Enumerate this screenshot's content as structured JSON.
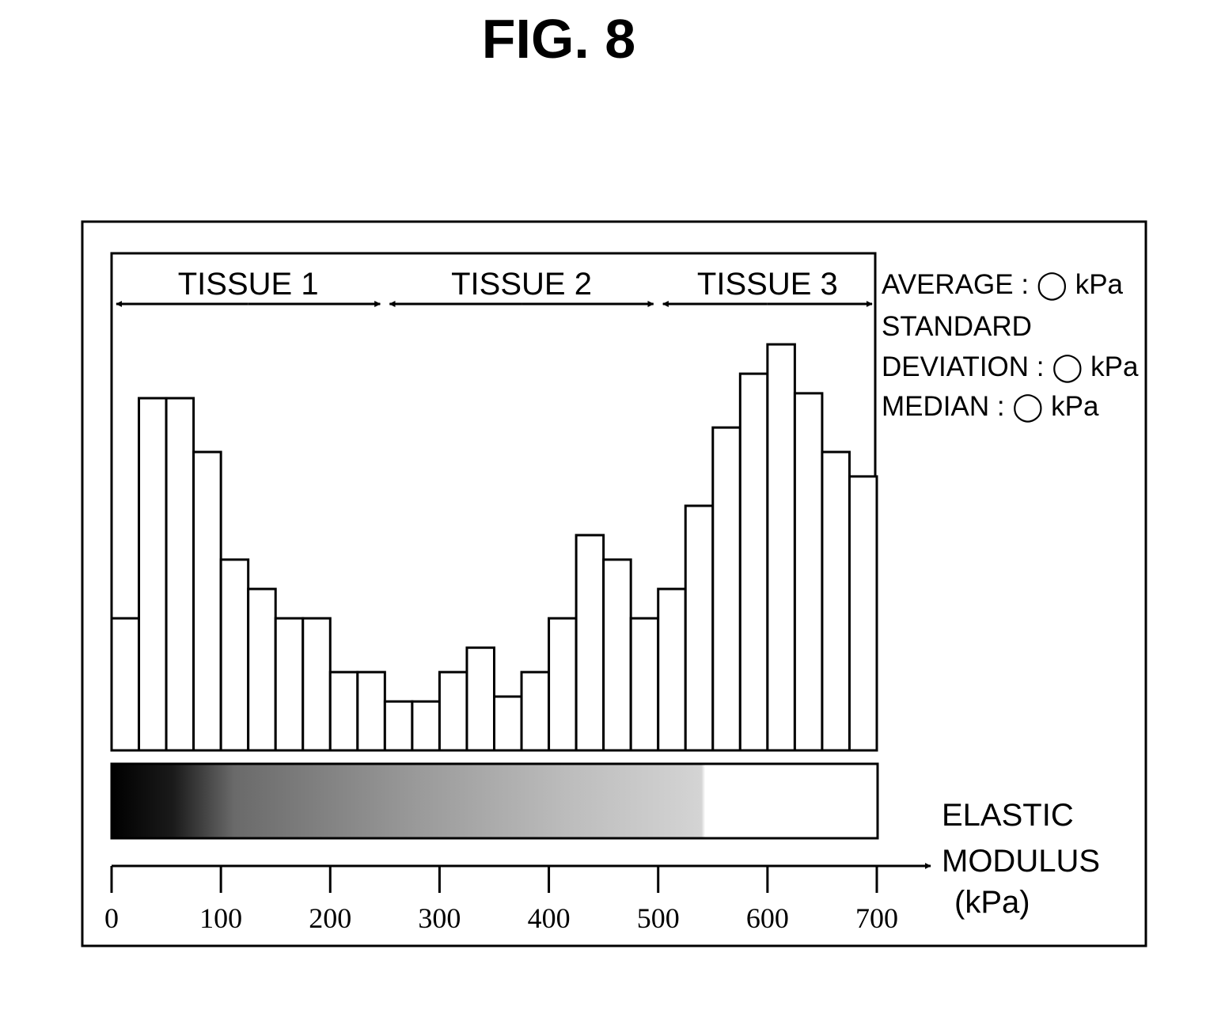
{
  "figure": {
    "title": "FIG. 8"
  },
  "stats": {
    "average": "AVERAGE : ◯ kPa",
    "std_line1": "STANDARD",
    "std_line2": "DEVIATION : ◯ kPa",
    "median": "MEDIAN : ◯ kPa"
  },
  "x_axis": {
    "label_line1": "ELASTIC",
    "label_line2": "MODULUS",
    "label_line3": "(kPa)"
  },
  "colorbar": {
    "gradient": [
      "#000000",
      "#1a1a1a",
      "#6a6a6a",
      "#9a9a9a",
      "#bdbdbd",
      "#d4d4d4",
      "#ffffff"
    ],
    "gradient_stops": [
      0,
      0.08,
      0.16,
      0.4,
      0.6,
      0.77,
      0.775
    ]
  },
  "colors": {
    "ink": "#000000",
    "background": "#ffffff"
  },
  "chart_data": {
    "type": "bar",
    "title": "",
    "xlabel": "ELASTIC MODULUS (kPa)",
    "ylabel": "",
    "xlim": [
      0,
      700
    ],
    "ylim": [
      0,
      100
    ],
    "grid": false,
    "bin_width": 25,
    "x_ticks": [
      0,
      100,
      200,
      300,
      400,
      500,
      600,
      700
    ],
    "x_tick_labels": [
      "0",
      "100",
      "200",
      "300",
      "400",
      "500",
      "600",
      "700"
    ],
    "bin_starts": [
      0,
      25,
      50,
      75,
      100,
      125,
      150,
      175,
      200,
      225,
      250,
      275,
      300,
      325,
      350,
      375,
      400,
      425,
      450,
      475,
      500,
      525,
      550,
      575,
      600,
      625,
      650,
      675
    ],
    "values": [
      27,
      72,
      72,
      61,
      39,
      33,
      27,
      27,
      16,
      16,
      10,
      10,
      16,
      21,
      11,
      16,
      27,
      44,
      39,
      27,
      33,
      50,
      66,
      77,
      83,
      73,
      61,
      56
    ],
    "regions": [
      {
        "label": "TISSUE 1",
        "start": 0,
        "end": 250
      },
      {
        "label": "TISSUE 2",
        "start": 250,
        "end": 500
      },
      {
        "label": "TISSUE 3",
        "start": 500,
        "end": 700
      }
    ]
  }
}
